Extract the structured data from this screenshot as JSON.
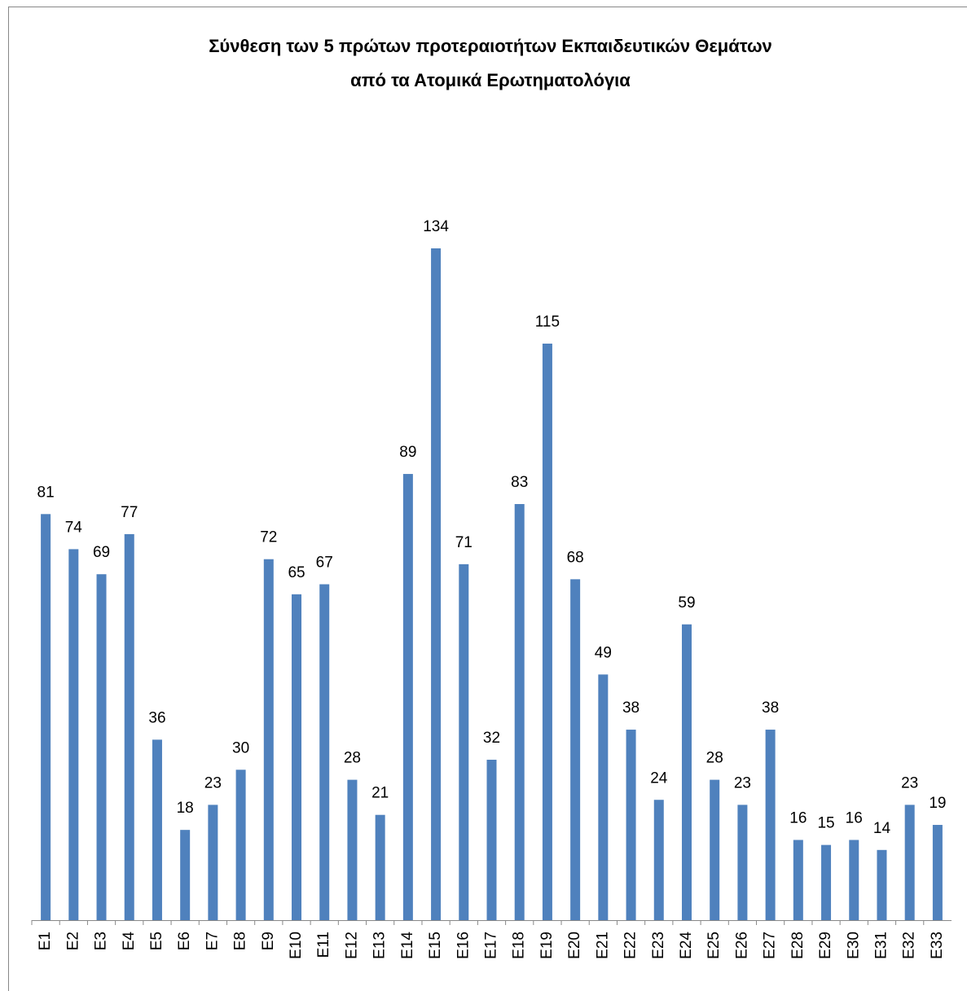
{
  "chart_data": {
    "type": "bar",
    "title": [
      "Σύνθεση των 5 πρώτων προτεραιοτήτων Εκπαιδευτικών Θεμάτων",
      "από τα Ατομικά Ερωτηματολόγια"
    ],
    "categories": [
      "E1",
      "E2",
      "E3",
      "E4",
      "E5",
      "E6",
      "E7",
      "E8",
      "E9",
      "E10",
      "E11",
      "E12",
      "E13",
      "E14",
      "E15",
      "E16",
      "E17",
      "E18",
      "E19",
      "E20",
      "E21",
      "E22",
      "E23",
      "E24",
      "E25",
      "E26",
      "E27",
      "E28",
      "E29",
      "E30",
      "E31",
      "E32",
      "E33"
    ],
    "values": [
      81,
      74,
      69,
      77,
      36,
      18,
      23,
      30,
      72,
      65,
      67,
      28,
      21,
      89,
      134,
      71,
      32,
      83,
      115,
      68,
      49,
      38,
      24,
      59,
      28,
      23,
      38,
      16,
      15,
      16,
      14,
      23,
      19
    ],
    "color": "#4f81bd"
  }
}
